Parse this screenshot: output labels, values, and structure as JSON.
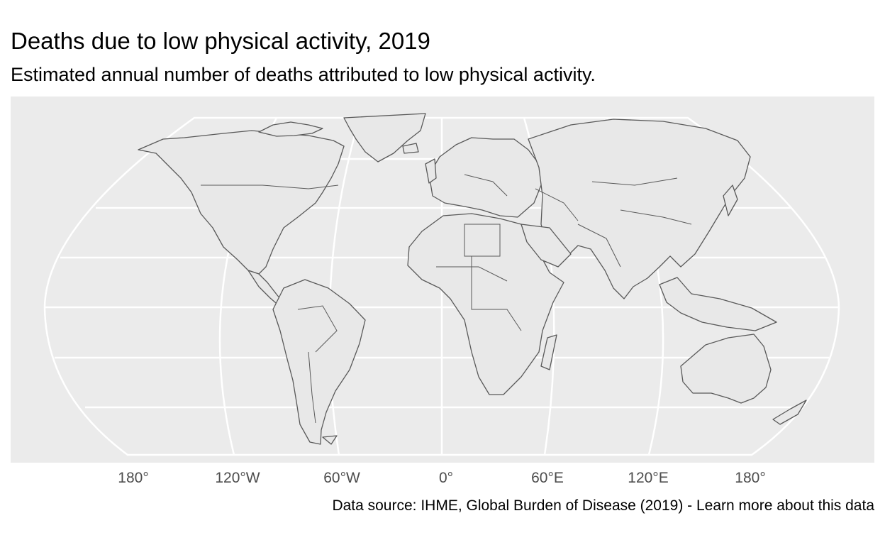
{
  "title": "Deaths due to low physical activity, 2019",
  "subtitle": "Estimated annual number of deaths attributed to low physical activity.",
  "source": "Data source: IHME, Global Burden of Disease (2019) - Learn more about this data",
  "map": {
    "projection": "robinson",
    "panel_color": "#ebebeb",
    "land_color": "#e8e8e8",
    "border_color": "#595959",
    "graticule_color": "#ffffff",
    "longitude_labels": [
      "180°",
      "120°W",
      "60°W",
      "0°",
      "60°E",
      "120°E",
      "180°"
    ]
  }
}
